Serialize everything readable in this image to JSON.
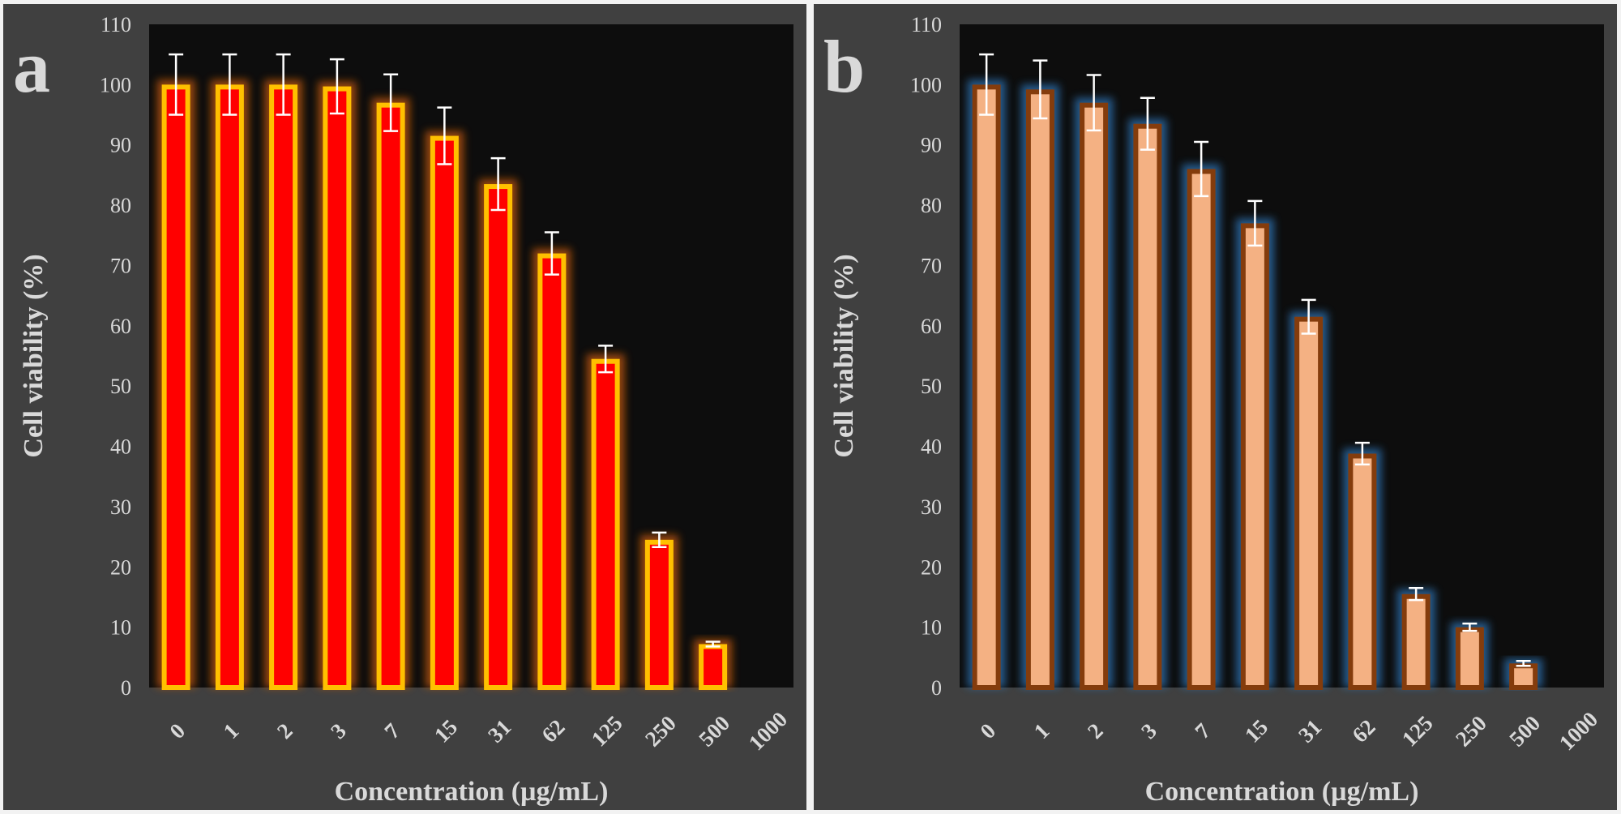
{
  "colors": {
    "panel_bg": "#404040",
    "plot_bg": "#0d0d0d",
    "text": "#d9d9d9",
    "error_bar": "#ffffff"
  },
  "chart_data": [
    {
      "type": "bar",
      "panel_label": "a",
      "xlabel": "Concentration (µg/mL)",
      "ylabel": "Cell viability (%)",
      "ylim": [
        0,
        110
      ],
      "yticks": [
        "0",
        "10",
        "20",
        "30",
        "40",
        "50",
        "60",
        "70",
        "80",
        "90",
        "100",
        "110"
      ],
      "categories": [
        "0",
        "1",
        "2",
        "3",
        "7",
        "15",
        "31",
        "62",
        "125",
        "250",
        "500",
        "1000"
      ],
      "values": [
        100,
        100,
        100,
        99.7,
        97,
        91.5,
        83.5,
        72,
        54.5,
        24.5,
        7.2,
        null
      ],
      "errors": [
        5,
        5,
        5,
        4.5,
        4.7,
        4.7,
        4.3,
        3.5,
        2.2,
        1.2,
        0.4,
        null
      ],
      "grid": false,
      "colors": {
        "fill": "#ff0000",
        "border": "#ffc000",
        "glow": "#c55a11"
      }
    },
    {
      "type": "bar",
      "panel_label": "b",
      "xlabel": "Concentration (µg/mL)",
      "ylabel": "Cell viability (%)",
      "ylim": [
        0,
        110
      ],
      "yticks": [
        "0",
        "10",
        "20",
        "30",
        "40",
        "50",
        "60",
        "70",
        "80",
        "90",
        "100",
        "110"
      ],
      "categories": [
        "0",
        "1",
        "2",
        "3",
        "7",
        "15",
        "31",
        "62",
        "125",
        "250",
        "500",
        "1000"
      ],
      "values": [
        100,
        99.2,
        97,
        93.5,
        86,
        77,
        61.5,
        38.8,
        15.5,
        10,
        4,
        null
      ],
      "errors": [
        5,
        4.8,
        4.6,
        4.3,
        4.5,
        3.7,
        2.8,
        1.8,
        1,
        0.6,
        0.4,
        null
      ],
      "grid": false,
      "colors": {
        "fill": "#f4b183",
        "border": "#843c0c",
        "glow": "#2e75b6"
      }
    }
  ]
}
